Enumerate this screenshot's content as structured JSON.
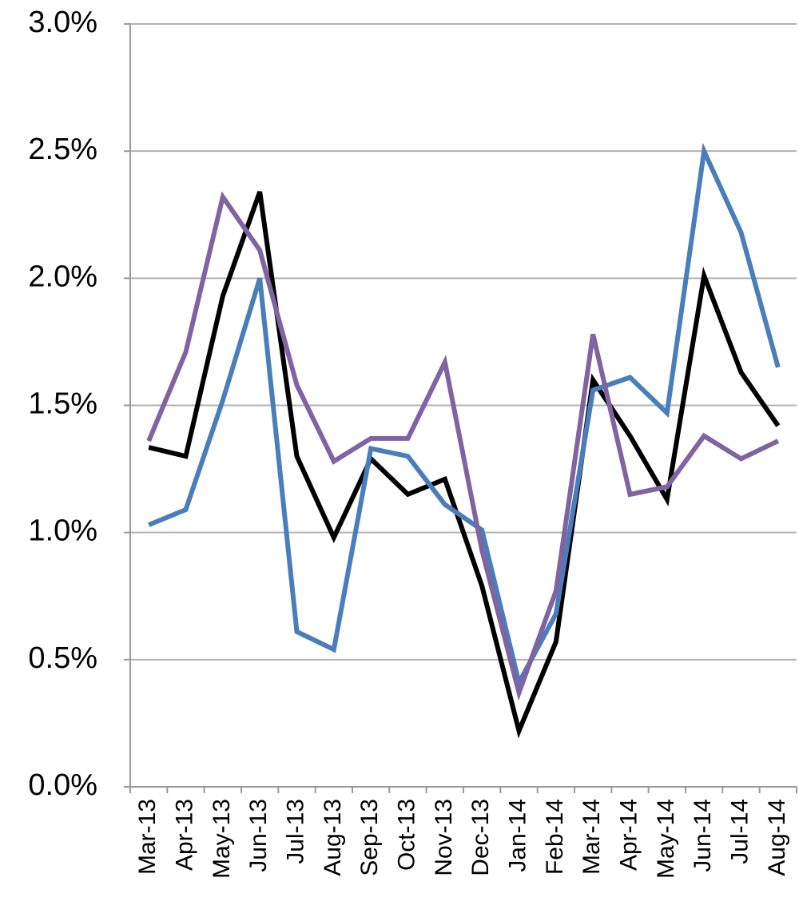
{
  "chart_data": {
    "type": "line",
    "categories": [
      "Mar-13",
      "Apr-13",
      "May-13",
      "Jun-13",
      "Jul-13",
      "Aug-13",
      "Sep-13",
      "Oct-13",
      "Nov-13",
      "Dec-13",
      "Jan-14",
      "Feb-14",
      "Mar-14",
      "Apr-14",
      "May-14",
      "Jun-14",
      "Jul-14",
      "Aug-14"
    ],
    "series": [
      {
        "color": "#000000",
        "values": [
          1.335,
          1.3,
          1.93,
          2.34,
          1.3,
          0.98,
          1.29,
          1.15,
          1.21,
          0.79,
          0.22,
          0.57,
          1.6,
          1.38,
          1.13,
          2.01,
          1.63,
          1.42
        ]
      },
      {
        "color": "#4a7ebb",
        "values": [
          1.03,
          1.09,
          1.52,
          2.0,
          0.61,
          0.54,
          1.33,
          1.3,
          1.11,
          1.01,
          0.41,
          0.68,
          1.56,
          1.61,
          1.47,
          2.5,
          2.18,
          1.65
        ]
      },
      {
        "color": "#8064a2",
        "values": [
          1.36,
          1.71,
          2.32,
          2.11,
          1.58,
          1.28,
          1.37,
          1.37,
          1.67,
          0.93,
          0.37,
          0.77,
          1.78,
          1.15,
          1.18,
          1.38,
          1.29,
          1.36
        ]
      }
    ],
    "ylim": [
      0,
      3
    ],
    "yticks": [
      {
        "value": 0,
        "label": "0.0%"
      },
      {
        "value": 0.5,
        "label": "0.5%"
      },
      {
        "value": 1,
        "label": "1.0%"
      },
      {
        "value": 1.5,
        "label": "1.5%"
      },
      {
        "value": 2,
        "label": "2.0%"
      },
      {
        "value": 2.5,
        "label": "2.5%"
      },
      {
        "value": 3,
        "label": "3.0%"
      }
    ],
    "grid": true
  }
}
